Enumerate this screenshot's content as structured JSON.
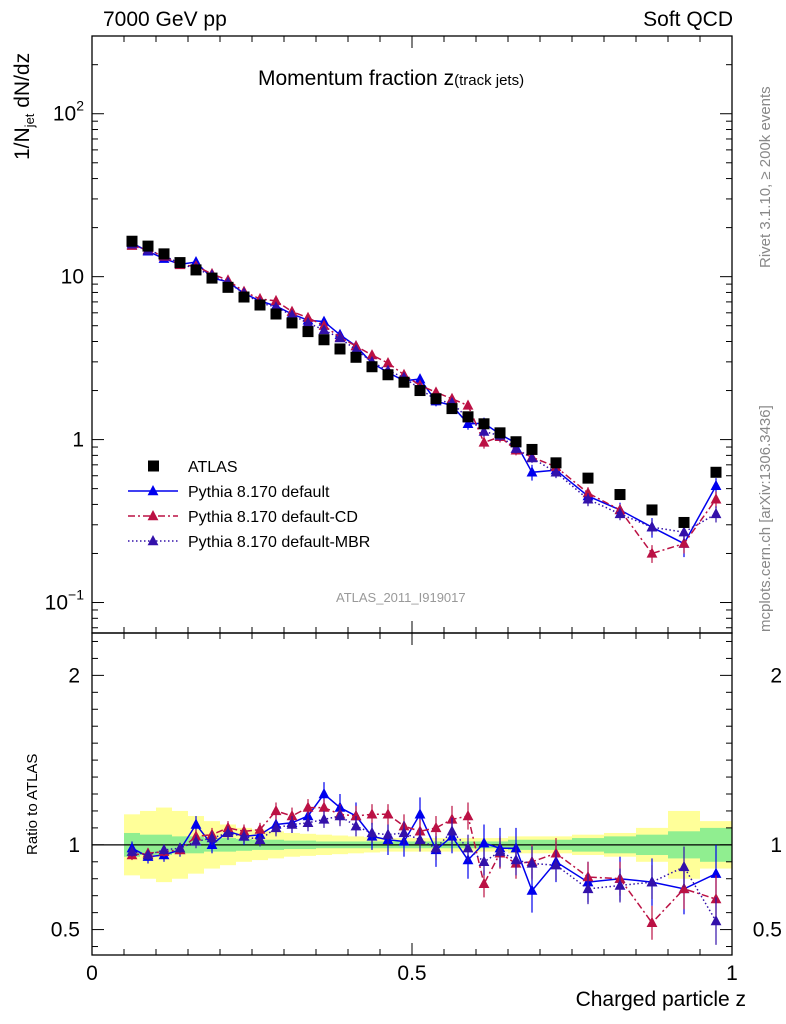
{
  "header": {
    "left": "7000 GeV pp",
    "right": "Soft QCD"
  },
  "side_text": {
    "version": "Rivet 3.1.10, ≥ 200k events",
    "source": "mcplots.cern.ch [arXiv:1306.3436]"
  },
  "title": {
    "main": "Momentum fraction z",
    "sub": "(track jets)"
  },
  "analysis_id": "ATLAS_2011_I919017",
  "colors": {
    "default": "#0000ee",
    "cd": "#bb1144",
    "mbr": "#3311aa",
    "band_inner": "#90ee90",
    "band_outer": "#ffff99"
  },
  "chart_data": [
    {
      "type": "line",
      "panel": "main",
      "title": "Momentum fraction z(track jets)",
      "xlabel": "Charged particle z",
      "ylabel": "1/N_jet dN/dz",
      "ylabel_parts": {
        "pre": "1/N",
        "sub": "jet",
        "post": " dN/dz"
      },
      "yscale": "log",
      "xlim": [
        0,
        1
      ],
      "ylim": [
        0.065,
        300
      ],
      "yticks": [
        {
          "value": 0.1,
          "base": "10",
          "exp": "−1"
        },
        {
          "value": 1,
          "base": "1",
          "exp": ""
        },
        {
          "value": 10,
          "base": "10",
          "exp": ""
        },
        {
          "value": 100,
          "base": "10",
          "exp": "2"
        }
      ],
      "legend": {
        "position": "middle-left",
        "entries": [
          "ATLAS",
          "Pythia 8.170 default",
          "Pythia 8.170 default-CD",
          "Pythia 8.170 default-MBR"
        ]
      },
      "x": [
        0.0625,
        0.0875,
        0.1125,
        0.1375,
        0.1625,
        0.1875,
        0.2125,
        0.2375,
        0.2625,
        0.2875,
        0.3125,
        0.3375,
        0.3625,
        0.3875,
        0.4125,
        0.4375,
        0.4625,
        0.4875,
        0.5125,
        0.5375,
        0.5625,
        0.5875,
        0.6125,
        0.6375,
        0.6625,
        0.6875,
        0.725,
        0.775,
        0.825,
        0.875,
        0.925,
        0.975
      ],
      "series": [
        {
          "name": "ATLAS",
          "style": "square",
          "values": [
            16.5,
            15.4,
            13.8,
            12.2,
            11.0,
            9.8,
            8.6,
            7.5,
            6.7,
            5.9,
            5.2,
            4.6,
            4.1,
            3.6,
            3.2,
            2.8,
            2.5,
            2.25,
            2.0,
            1.78,
            1.55,
            1.38,
            1.25,
            1.1,
            0.97,
            0.87,
            0.72,
            0.58,
            0.46,
            0.37,
            0.31,
            0.63
          ],
          "errors": [
            0.4,
            0.35,
            0.3,
            0.3,
            0.25,
            0.2,
            0.2,
            0.15,
            0.15,
            0.12,
            0.1,
            0.1,
            0.08,
            0.08,
            0.07,
            0.06,
            0.05,
            0.05,
            0.05,
            0.04,
            0.04,
            0.03,
            0.03,
            0.03,
            0.03,
            0.03,
            0.02,
            0.02,
            0.02,
            0.02,
            0.02,
            0.03
          ]
        },
        {
          "name": "Pythia 8.170 default",
          "style": "triangle-solid",
          "values": [
            16.1,
            14.3,
            12.9,
            11.9,
            12.3,
            9.8,
            9.3,
            7.9,
            7.1,
            6.6,
            5.9,
            5.4,
            5.3,
            4.4,
            3.75,
            2.95,
            2.58,
            2.3,
            2.35,
            1.72,
            1.62,
            1.25,
            1.26,
            1.08,
            0.95,
            0.63,
            0.65,
            0.45,
            0.37,
            0.29,
            0.23,
            0.52
          ],
          "errors": [
            0.5,
            0.5,
            0.5,
            0.5,
            0.6,
            0.5,
            0.4,
            0.4,
            0.4,
            0.3,
            0.3,
            0.3,
            0.3,
            0.25,
            0.2,
            0.2,
            0.2,
            0.15,
            0.15,
            0.12,
            0.1,
            0.1,
            0.1,
            0.08,
            0.08,
            0.07,
            0.06,
            0.05,
            0.04,
            0.04,
            0.04,
            0.06
          ]
        },
        {
          "name": "Pythia 8.170 default-CD",
          "style": "triangle-dashdot",
          "values": [
            15.5,
            14.6,
            13.3,
            11.8,
            11.6,
            10.4,
            9.5,
            8.1,
            7.3,
            7.1,
            6.1,
            5.6,
            5.0,
            4.25,
            3.75,
            3.3,
            2.95,
            2.5,
            2.15,
            1.95,
            1.78,
            1.62,
            0.96,
            1.04,
            0.86,
            0.78,
            0.68,
            0.47,
            0.37,
            0.2,
            0.23,
            0.43
          ],
          "errors": [
            0.4,
            0.4,
            0.4,
            0.4,
            0.4,
            0.3,
            0.3,
            0.3,
            0.3,
            0.3,
            0.3,
            0.25,
            0.2,
            0.2,
            0.15,
            0.15,
            0.15,
            0.12,
            0.1,
            0.1,
            0.1,
            0.08,
            0.08,
            0.08,
            0.06,
            0.05,
            0.05,
            0.04,
            0.03,
            0.025,
            0.03,
            0.05
          ]
        },
        {
          "name": "Pythia 8.170 default-MBR",
          "style": "triangle-dotted",
          "values": [
            15.8,
            14.5,
            13.5,
            12.0,
            11.2,
            10.2,
            9.2,
            7.9,
            6.9,
            6.5,
            5.8,
            5.2,
            4.7,
            4.2,
            3.55,
            3.0,
            2.65,
            2.4,
            2.05,
            1.75,
            1.68,
            1.35,
            1.12,
            1.06,
            0.88,
            0.77,
            0.63,
            0.43,
            0.35,
            0.29,
            0.27,
            0.35
          ],
          "errors": [
            0.4,
            0.4,
            0.4,
            0.4,
            0.4,
            0.3,
            0.3,
            0.3,
            0.3,
            0.3,
            0.3,
            0.25,
            0.2,
            0.2,
            0.15,
            0.15,
            0.15,
            0.12,
            0.1,
            0.1,
            0.1,
            0.08,
            0.08,
            0.08,
            0.06,
            0.05,
            0.05,
            0.04,
            0.03,
            0.03,
            0.03,
            0.04
          ]
        }
      ]
    },
    {
      "type": "line",
      "panel": "ratio",
      "xlabel": "Charged particle z",
      "ylabel": "Ratio to ATLAS",
      "xlim": [
        0,
        1
      ],
      "ylim": [
        0.35,
        2.25
      ],
      "xticks": [
        {
          "value": 0,
          "label": "0"
        },
        {
          "value": 0.5,
          "label": "0.5"
        },
        {
          "value": 1,
          "label": "1"
        }
      ],
      "yticks": [
        {
          "value": 0.5,
          "label": "0.5"
        },
        {
          "value": 1,
          "label": "1"
        },
        {
          "value": 2,
          "label": "2"
        }
      ],
      "reference_line": 1.0,
      "bin_edges": [
        0.05,
        0.075,
        0.1,
        0.125,
        0.15,
        0.175,
        0.2,
        0.225,
        0.25,
        0.275,
        0.3,
        0.325,
        0.35,
        0.375,
        0.4,
        0.425,
        0.45,
        0.475,
        0.5,
        0.525,
        0.55,
        0.575,
        0.6,
        0.625,
        0.65,
        0.675,
        0.7,
        0.75,
        0.8,
        0.85,
        0.9,
        0.95,
        1.0
      ],
      "bands": {
        "inner": [
          0.07,
          0.06,
          0.06,
          0.05,
          0.05,
          0.04,
          0.04,
          0.035,
          0.03,
          0.03,
          0.025,
          0.025,
          0.02,
          0.02,
          0.02,
          0.02,
          0.02,
          0.02,
          0.02,
          0.02,
          0.02,
          0.02,
          0.02,
          0.02,
          0.03,
          0.03,
          0.03,
          0.04,
          0.05,
          0.06,
          0.08,
          0.1
        ],
        "outer": [
          0.18,
          0.2,
          0.22,
          0.2,
          0.17,
          0.14,
          0.12,
          0.1,
          0.09,
          0.08,
          0.07,
          0.065,
          0.06,
          0.055,
          0.05,
          0.045,
          0.04,
          0.04,
          0.04,
          0.04,
          0.04,
          0.04,
          0.04,
          0.04,
          0.05,
          0.05,
          0.05,
          0.06,
          0.07,
          0.1,
          0.2,
          0.14
        ]
      },
      "x": [
        0.0625,
        0.0875,
        0.1125,
        0.1375,
        0.1625,
        0.1875,
        0.2125,
        0.2375,
        0.2625,
        0.2875,
        0.3125,
        0.3375,
        0.3625,
        0.3875,
        0.4125,
        0.4375,
        0.4625,
        0.4875,
        0.5125,
        0.5375,
        0.5625,
        0.5875,
        0.6125,
        0.6375,
        0.6625,
        0.6875,
        0.725,
        0.775,
        0.825,
        0.875,
        0.925,
        0.975
      ],
      "series": [
        {
          "name": "Pythia 8.170 default",
          "style": "triangle-solid",
          "values": [
            0.98,
            0.93,
            0.94,
            0.97,
            1.12,
            1.0,
            1.08,
            1.05,
            1.06,
            1.12,
            1.13,
            1.17,
            1.3,
            1.22,
            1.17,
            1.05,
            1.03,
            1.02,
            1.18,
            0.97,
            1.05,
            0.91,
            1.01,
            0.98,
            0.98,
            0.73,
            0.9,
            0.78,
            0.8,
            0.78,
            0.74,
            0.83
          ],
          "errors": [
            0.04,
            0.04,
            0.04,
            0.04,
            0.05,
            0.05,
            0.05,
            0.05,
            0.06,
            0.06,
            0.06,
            0.07,
            0.07,
            0.08,
            0.08,
            0.08,
            0.09,
            0.09,
            0.1,
            0.1,
            0.1,
            0.11,
            0.11,
            0.12,
            0.12,
            0.13,
            0.12,
            0.12,
            0.13,
            0.14,
            0.15,
            0.17
          ]
        },
        {
          "name": "Pythia 8.170 default-CD",
          "style": "triangle-dashdot",
          "values": [
            0.94,
            0.95,
            0.96,
            0.97,
            1.05,
            1.06,
            1.1,
            1.08,
            1.09,
            1.2,
            1.17,
            1.22,
            1.22,
            1.18,
            1.17,
            1.18,
            1.18,
            1.11,
            1.08,
            1.1,
            1.15,
            1.17,
            0.77,
            0.95,
            0.89,
            0.9,
            0.95,
            0.81,
            0.8,
            0.54,
            0.74,
            0.68
          ],
          "errors": [
            0.03,
            0.03,
            0.03,
            0.03,
            0.04,
            0.04,
            0.04,
            0.04,
            0.04,
            0.05,
            0.05,
            0.05,
            0.05,
            0.06,
            0.06,
            0.06,
            0.06,
            0.07,
            0.07,
            0.07,
            0.08,
            0.08,
            0.08,
            0.09,
            0.09,
            0.1,
            0.09,
            0.09,
            0.1,
            0.1,
            0.12,
            0.14
          ]
        },
        {
          "name": "Pythia 8.170 default-MBR",
          "style": "triangle-dotted",
          "values": [
            0.96,
            0.94,
            0.97,
            0.98,
            1.02,
            1.04,
            1.07,
            1.05,
            1.03,
            1.1,
            1.12,
            1.13,
            1.15,
            1.17,
            1.11,
            1.07,
            1.06,
            1.07,
            1.03,
            0.98,
            1.08,
            0.98,
            0.9,
            0.96,
            0.91,
            0.89,
            0.88,
            0.74,
            0.76,
            0.78,
            0.87,
            0.55
          ],
          "errors": [
            0.03,
            0.03,
            0.03,
            0.03,
            0.04,
            0.04,
            0.04,
            0.04,
            0.04,
            0.05,
            0.05,
            0.05,
            0.05,
            0.06,
            0.06,
            0.06,
            0.06,
            0.07,
            0.07,
            0.07,
            0.08,
            0.08,
            0.08,
            0.09,
            0.09,
            0.1,
            0.09,
            0.09,
            0.1,
            0.1,
            0.12,
            0.14
          ]
        }
      ]
    }
  ]
}
